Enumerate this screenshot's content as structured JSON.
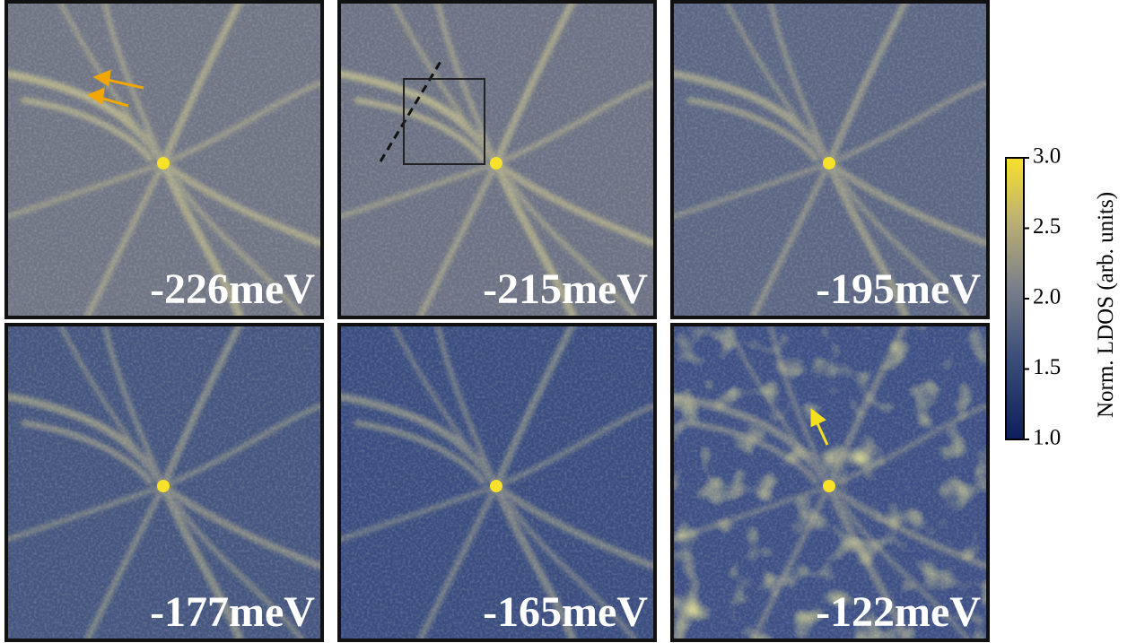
{
  "panels": [
    {
      "label": "-226meV"
    },
    {
      "label": "-215meV"
    },
    {
      "label": "-195meV"
    },
    {
      "label": "-177meV"
    },
    {
      "label": "-165meV"
    },
    {
      "label": "-122meV"
    }
  ],
  "colorbar": {
    "label": "Norm. LDOS (arb. units)",
    "lim": [
      1,
      3
    ],
    "ticks": [
      {
        "value": 1,
        "label": "1.0"
      },
      {
        "value": 1.5,
        "label": "1.5"
      },
      {
        "value": 2,
        "label": "2.0"
      },
      {
        "value": 2.5,
        "label": "2.5"
      },
      {
        "value": 3,
        "label": "3.0"
      }
    ]
  }
}
